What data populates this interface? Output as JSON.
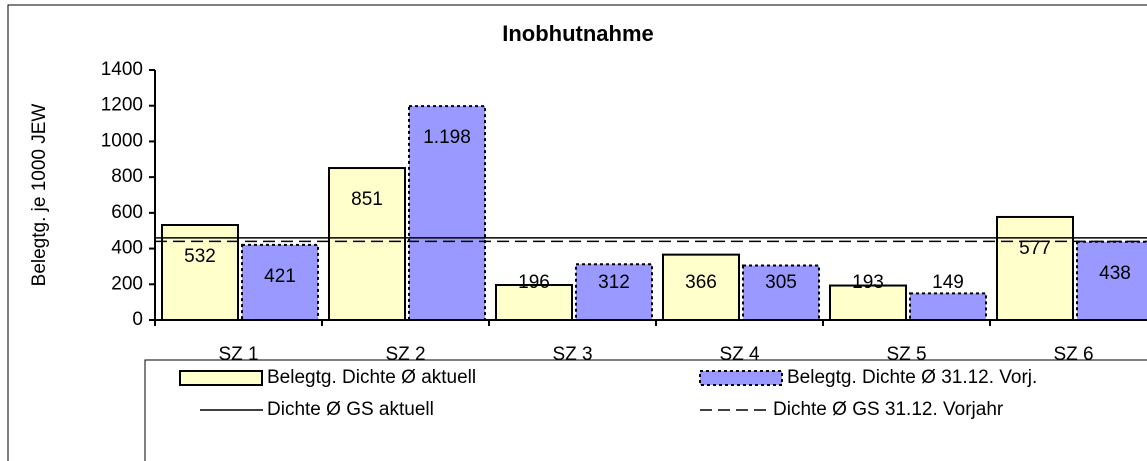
{
  "chart_data": {
    "type": "bar",
    "title": "Inobhutnahme",
    "y_label": "Belegtg. je 1000 JEW",
    "categories": [
      "SZ 1",
      "SZ 2",
      "SZ 3",
      "SZ 4",
      "SZ 5",
      "SZ 6"
    ],
    "series": [
      {
        "name": "Belegtg. Dichte Ø aktuell",
        "color": "#ffffcc",
        "border": "solid",
        "values": [
          532,
          851,
          196,
          366,
          193,
          577
        ]
      },
      {
        "name": "Belegtg. Dichte Ø 31.12. Vorj.",
        "color": "#9999ff",
        "border": "dotted",
        "values": [
          421,
          1198,
          312,
          305,
          149,
          438
        ],
        "value_labels": [
          "421",
          "1.198",
          "312",
          "305",
          "149",
          "438"
        ]
      }
    ],
    "reference_lines": [
      {
        "name": "Dichte Ø GS aktuell",
        "color": "#000000",
        "style": "solid",
        "value": 460
      },
      {
        "name": "Dichte Ø GS 31.12. Vorjahr",
        "color": "#000000",
        "style": "dashed",
        "value": 440
      }
    ],
    "ylim": [
      0,
      1400
    ],
    "yticks": [
      0,
      200,
      400,
      600,
      800,
      1000,
      1200,
      1400
    ],
    "grid": false
  }
}
